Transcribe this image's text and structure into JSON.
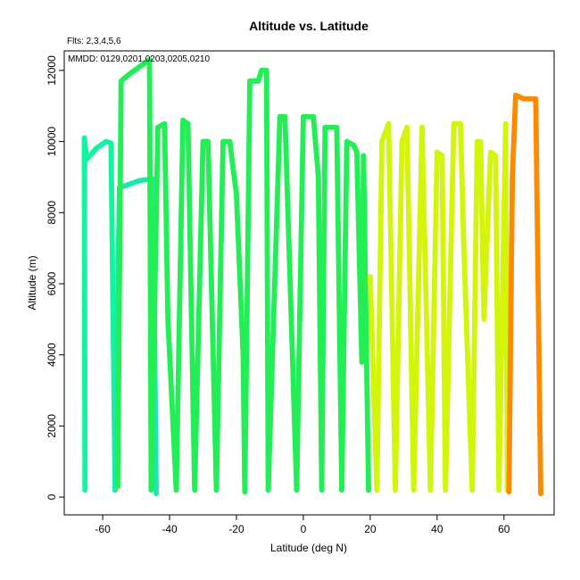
{
  "chart_data": {
    "type": "scatter",
    "title": "Altitude vs. Latitude",
    "subtitle": "Flts: 2,3,4,5,6",
    "annotation": "MMDD: 0129,0201,0203,0205,0210",
    "xlabel": "Latitude (deg N)",
    "ylabel": "Altitude (m)",
    "xlim": [
      -71.5,
      75
    ],
    "ylim": [
      -500,
      12550
    ],
    "xticks": [
      -60,
      -40,
      -20,
      0,
      20,
      40,
      60
    ],
    "yticks": [
      0,
      2000,
      4000,
      6000,
      8000,
      10000,
      12000
    ],
    "grid": false,
    "legend": "none",
    "colors": {
      "axis": "#000000",
      "background": "#ffffff"
    },
    "series": [
      {
        "color": "#11f5a0",
        "points": [
          [
            -65.3,
            200
          ],
          [
            -65.5,
            10100
          ],
          [
            -64.8,
            9500
          ],
          [
            -62,
            9800
          ],
          [
            -59,
            10000
          ],
          [
            -57.5,
            9950
          ],
          [
            -56.3,
            200
          ]
        ]
      },
      {
        "color": "#1ae8b0",
        "points": [
          [
            -56.3,
            200
          ],
          [
            -55,
            8700
          ],
          [
            -52,
            8800
          ],
          [
            -49,
            8900
          ],
          [
            -45,
            8950
          ],
          [
            -44,
            100
          ]
        ]
      },
      {
        "color": "#22ee55",
        "points": [
          [
            -55.5,
            300
          ],
          [
            -54.5,
            11700
          ],
          [
            -52,
            11900
          ],
          [
            -49,
            12100
          ],
          [
            -46,
            12300
          ],
          [
            -45.5,
            200
          ],
          [
            -43.5,
            10400
          ],
          [
            -41.5,
            10500
          ],
          [
            -40.5,
            5000
          ],
          [
            -38,
            200
          ],
          [
            -36,
            10600
          ],
          [
            -34.5,
            10500
          ],
          [
            -32.5,
            200
          ],
          [
            -30,
            10000
          ],
          [
            -28.5,
            10000
          ],
          [
            -26,
            200
          ],
          [
            -24,
            10000
          ],
          [
            -22,
            10000
          ],
          [
            -20,
            8500
          ],
          [
            -18,
            4000
          ],
          [
            -17.5,
            150
          ],
          [
            -16,
            11700
          ],
          [
            -13.5,
            11700
          ],
          [
            -12.5,
            12000
          ],
          [
            -11,
            12000
          ],
          [
            -10.5,
            200
          ],
          [
            -7,
            10700
          ],
          [
            -5.5,
            10700
          ],
          [
            -2,
            200
          ],
          [
            0,
            10700
          ],
          [
            3,
            10700
          ],
          [
            4.5,
            9000
          ],
          [
            5.5,
            200
          ],
          [
            6.5,
            10400
          ],
          [
            10,
            10400
          ],
          [
            11.5,
            200
          ],
          [
            13,
            10000
          ],
          [
            15,
            9900
          ],
          [
            16,
            9700
          ],
          [
            17.5,
            3800
          ],
          [
            18,
            9600
          ],
          [
            19.5,
            200
          ]
        ]
      },
      {
        "color": "#d2f50a",
        "points": [
          [
            20,
            6200
          ],
          [
            22,
            200
          ],
          [
            23.5,
            10000
          ],
          [
            25.5,
            10500
          ],
          [
            27.5,
            200
          ],
          [
            29.5,
            10000
          ],
          [
            31,
            10400
          ],
          [
            33,
            200
          ],
          [
            35.5,
            10400
          ],
          [
            38,
            200
          ],
          [
            40,
            9700
          ],
          [
            41.5,
            9600
          ],
          [
            42.5,
            200
          ],
          [
            45,
            10500
          ],
          [
            47,
            10500
          ],
          [
            48,
            7000
          ],
          [
            50.5,
            200
          ],
          [
            52,
            10000
          ],
          [
            53,
            10000
          ],
          [
            54,
            5000
          ],
          [
            56,
            9700
          ],
          [
            57.5,
            9600
          ],
          [
            58.5,
            200
          ],
          [
            60.5,
            10500
          ],
          [
            61,
            200
          ]
        ]
      },
      {
        "color": "#ff8a00",
        "points": [
          [
            61.5,
            150
          ],
          [
            62.5,
            9000
          ],
          [
            63.5,
            11300
          ],
          [
            66,
            11200
          ],
          [
            68,
            11200
          ],
          [
            69.5,
            11200
          ],
          [
            71,
            100
          ]
        ]
      }
    ]
  }
}
